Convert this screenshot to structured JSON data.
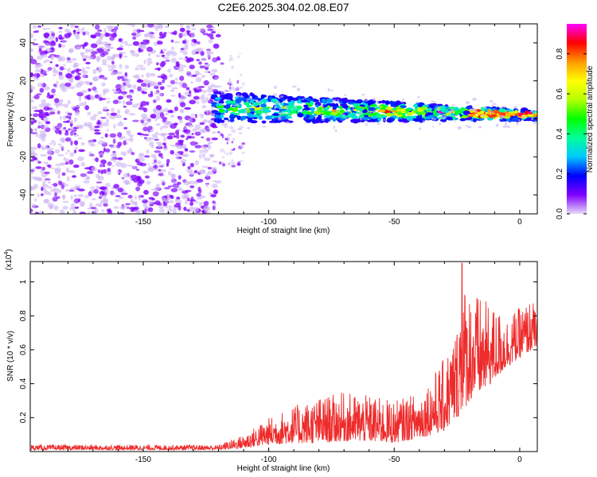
{
  "chart_data": [
    {
      "type": "heatmap",
      "title": "C2E6.2025.304.02.08.E07",
      "xlabel": "Height of straight line (km)",
      "ylabel": "Frequency (Hz)",
      "xlim": [
        -195,
        7
      ],
      "ylim": [
        -50,
        50
      ],
      "xticks": [
        -150,
        -100,
        -50,
        0
      ],
      "yticks": [
        -40,
        -20,
        0,
        20,
        40
      ],
      "regions": [
        {
          "name": "scattered noise",
          "x_range": [
            -195,
            -120
          ],
          "freq_range": [
            -50,
            50
          ],
          "amplitude": [
            0.02,
            0.15
          ]
        },
        {
          "name": "transition",
          "x_range": [
            -120,
            -110
          ],
          "freq_range": [
            -25,
            35
          ],
          "amplitude": [
            0.05,
            0.12
          ]
        },
        {
          "name": "signal band",
          "x_range": [
            -122,
            7
          ],
          "center_freq_start": 6,
          "center_freq_end": 2,
          "halfwidth_start": 8,
          "halfwidth_end": 2.5,
          "amplitude": [
            0.15,
            0.9
          ]
        }
      ],
      "colorbar": {
        "label": "Normalized spectral amplitude",
        "range": [
          0.0,
          0.95
        ],
        "ticks": [
          0.0,
          0.2,
          0.4,
          0.6,
          0.8
        ],
        "colors": [
          "#e6d9f7",
          "#7f00ff",
          "#0000ff",
          "#00c8ff",
          "#00ff9a",
          "#00ff00",
          "#b4ff00",
          "#ffff00",
          "#ff9a00",
          "#ff0000",
          "#ff00ff"
        ]
      }
    },
    {
      "type": "line",
      "xlabel": "Height of straight line (km)",
      "ylabel": "SNR (10 * v/v)",
      "yscale_label": "(x10",
      "yscale_exp": "4",
      "yscale_close": ")",
      "xlim": [
        -195,
        7
      ],
      "ylim": [
        0,
        1.12
      ],
      "xticks": [
        -150,
        -100,
        -50,
        0
      ],
      "yticks": [
        0.2,
        0.4,
        0.6,
        0.8,
        1
      ],
      "series": [
        {
          "name": "SNR",
          "color": "#ee2a2a",
          "envelope_x": [
            -195,
            -120,
            -110,
            -100,
            -90,
            -80,
            -70,
            -60,
            -50,
            -40,
            -35,
            -30,
            -25,
            -23,
            -22,
            -20,
            -15,
            -10,
            -5,
            0,
            5,
            7
          ],
          "envelope_min": [
            0.01,
            0.01,
            0.02,
            0.04,
            0.05,
            0.05,
            0.06,
            0.06,
            0.05,
            0.08,
            0.1,
            0.12,
            0.2,
            0.22,
            0.25,
            0.3,
            0.35,
            0.42,
            0.5,
            0.55,
            0.6,
            0.62
          ],
          "envelope_max": [
            0.04,
            0.04,
            0.1,
            0.2,
            0.27,
            0.32,
            0.35,
            0.33,
            0.3,
            0.35,
            0.45,
            0.55,
            0.75,
            1.12,
            1.0,
            0.98,
            0.9,
            0.85,
            0.8,
            0.85,
            0.9,
            0.8
          ]
        }
      ]
    }
  ]
}
